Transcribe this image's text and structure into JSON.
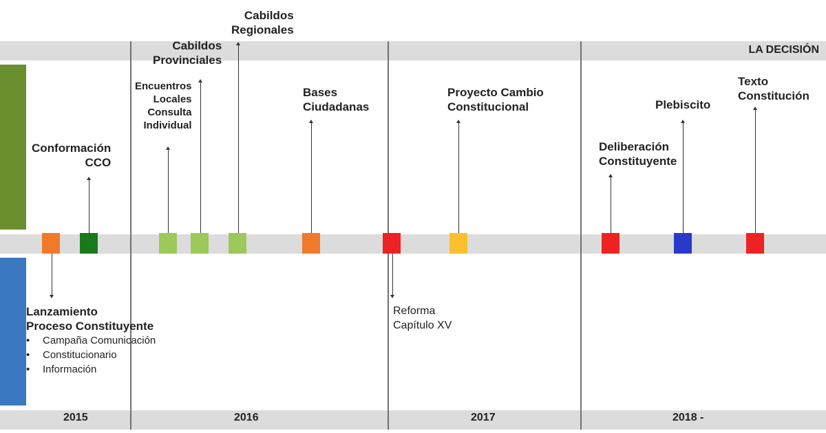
{
  "header": {
    "phase_label": "LA DECISIÓN"
  },
  "years": [
    "2015",
    "2016",
    "2017",
    "2018 -"
  ],
  "events": {
    "conformacion": [
      "Conformación",
      "CCO"
    ],
    "encuentros": [
      "Encuentros",
      "Locales",
      "Consulta",
      "Individual"
    ],
    "cabildos_provinciales": [
      "Cabildos",
      "Provinciales"
    ],
    "cabildos_regionales": [
      "Cabildos",
      "Regionales"
    ],
    "bases": [
      "Bases",
      "Ciudadanas"
    ],
    "proyecto": [
      "Proyecto Cambio",
      "Constitucional"
    ],
    "deliberacion": [
      "Deliberación",
      "Constituyente"
    ],
    "plebiscito": [
      "Plebiscito"
    ],
    "texto": [
      "Texto",
      "Constitución"
    ],
    "lanzamiento": [
      "Lanzamiento",
      "Proceso Constituyente"
    ],
    "lanzamiento_items": [
      "Campaña Comunicación",
      "Constitucionario",
      "Información"
    ],
    "reforma": [
      "Reforma",
      "Capítulo XV"
    ]
  },
  "colors": {
    "orange": "#f07a2a",
    "dark_green": "#1a7a1a",
    "light_green": "#9dc85a",
    "red": "#ee2222",
    "yellow": "#fbc02d",
    "blue": "#2a3ac8"
  }
}
